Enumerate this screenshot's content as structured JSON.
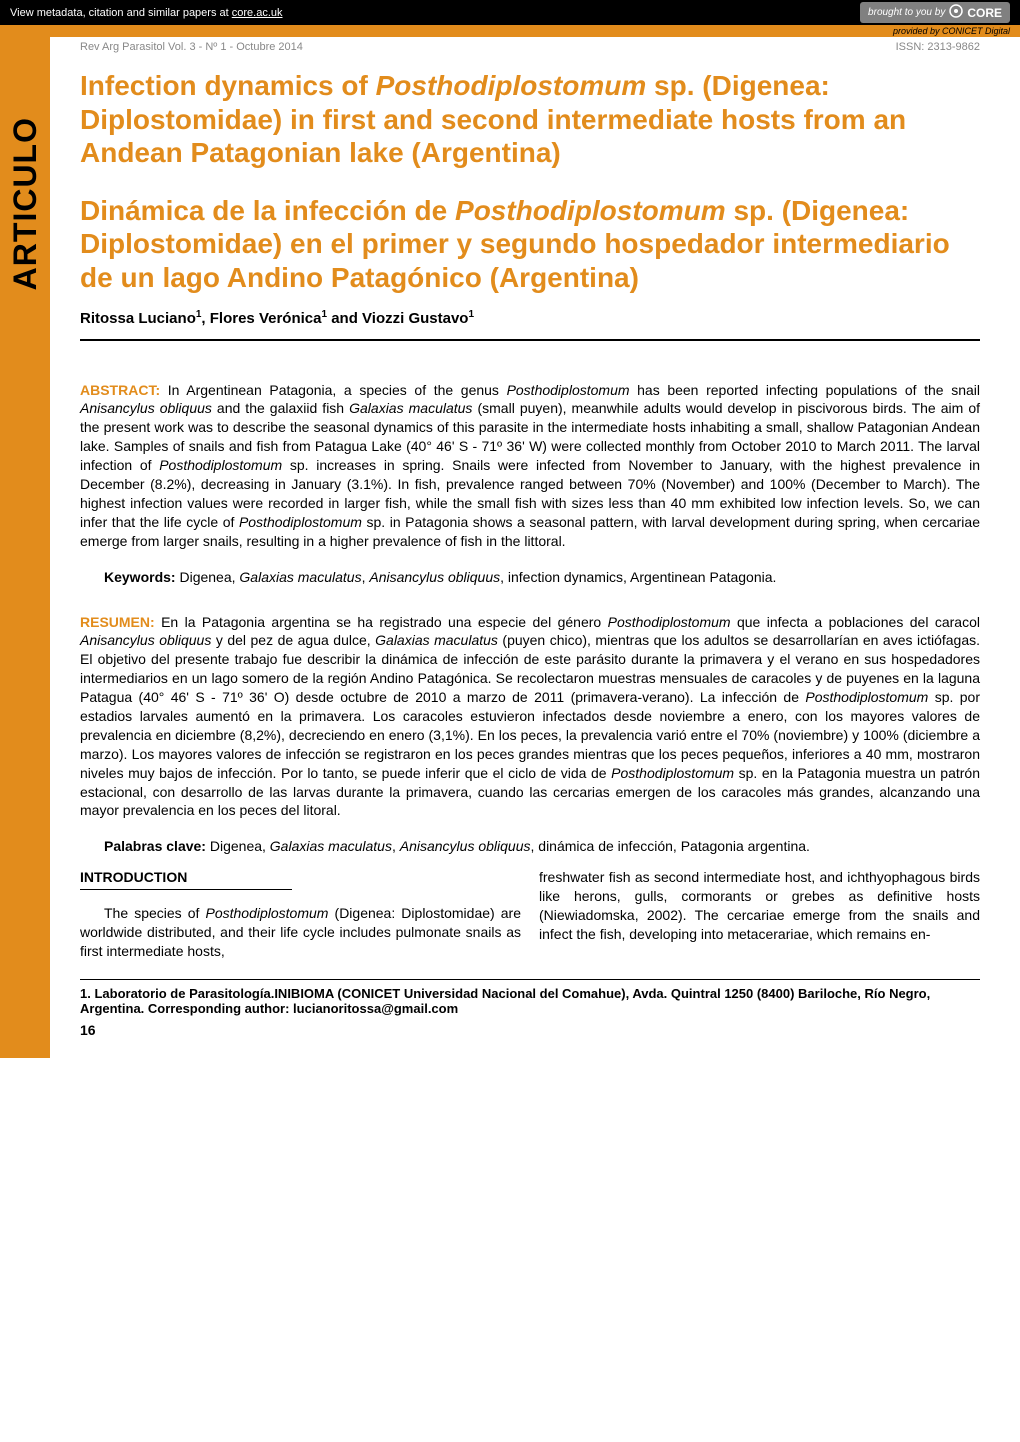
{
  "banner": {
    "metadata_text": "View metadata, citation and similar papers at ",
    "metadata_link": "core.ac.uk",
    "brought_by": "brought to you by",
    "core": "CORE",
    "provided_by": "provided by CONICET Digital"
  },
  "header": {
    "journal_left": "Rev Arg Parasitol Vol. 3 - Nº 1 - Octubre 2014",
    "issn_right": "ISSN: 2313-9862"
  },
  "side_tab": "ARTICULO",
  "title_en": "Infection dynamics of <em>Posthodiplostomum</em> sp. (Digenea: Diplostomidae) in first and second intermediate hosts from an Andean Patagonian lake (Argentina)",
  "title_es": "Dinámica de la infección de <em>Posthodiplostomum</em> sp. (Digenea: Diplostomidae) en el primer y segundo hospedador intermediario de un lago Andino Patagónico (Argentina)",
  "authors_html": "Ritossa Luciano<sup>1</sup>, Flores Verónica<sup>1</sup> and Viozzi Gustavo<sup>1</sup>",
  "abstract": {
    "label": "ABSTRACT:",
    "text": " In Argentinean Patagonia, a species of the genus <em>Posthodiplostomum</em> has been reported infecting populations of the snail <em>Anisancylus obliquus</em> and the galaxiid fish <em>Galaxias maculatus</em> (small puyen), meanwhile adults would develop in piscivorous birds. The aim of the present work was to describe the seasonal dynamics of this parasite in the intermediate hosts inhabiting a small, shallow Patagonian Andean lake. Samples of snails and fish from Patagua Lake (40° 46' S - 71º 36' W) were collected monthly from October 2010 to March 2011. The larval infection of <em>Posthodiplostomum</em> sp. increases in spring. Snails were infected from November to January, with the highest prevalence in December (8.2%), decreasing in January (3.1%). In fish, prevalence ranged between 70% (November) and 100% (December to March). The highest infection values were recorded in larger fish, while the small fish with sizes less than 40 mm exhibited low infection levels.  So, we can infer that the life cycle of <em>Posthodiplostomum</em> sp. in Patagonia shows a seasonal pattern, with larval development during spring, when cercariae emerge from larger snails, resulting in a higher prevalence of fish in the littoral."
  },
  "keywords": {
    "label": "Keywords:",
    "text": " Digenea, <em>Galaxias maculatus</em>, <em>Anisancylus obliquus</em>, infection dynamics, Argentinean Patagonia."
  },
  "resumen": {
    "label": "RESUMEN:",
    "text": " En la Patagonia argentina se ha registrado una especie del género <em>Posthodiplostomum</em> que infecta a poblaciones del caracol <em>Anisancylus obliquus</em> y del pez de agua dulce, <em>Galaxias maculatus</em> (puyen chico), mientras que los adultos se desarrollarían en aves ictiófagas. El objetivo del presente trabajo fue describir la dinámica de infección de este parásito durante la primavera y el verano en sus hospedadores intermediarios en un lago somero de la región Andino Patagónica. Se recolectaron muestras mensuales de caracoles y de puyenes en la laguna Patagua (40° 46' S - 71º 36' O) desde octubre de 2010 a marzo de 2011 (primavera-verano). La infección de <em>Posthodiplostomum</em> sp. por estadios larvales aumentó en la primavera. Los caracoles estuvieron infectados desde noviembre a enero, con los mayores valores de prevalencia en diciembre (8,2%), decreciendo en enero (3,1%). En los peces, la prevalencia varió entre el 70% (noviembre) y 100% (diciembre a marzo). Los mayores valores de infección se registraron en los peces grandes mientras que los peces pequeños, inferiores a 40 mm, mostraron niveles muy bajos de infección. Por lo tanto, se puede inferir que el ciclo de vida de <em>Posthodiplostomum</em> sp. en la Patagonia muestra un patrón estacional, con desarrollo de las larvas durante la primavera, cuando las cercarias emergen de los caracoles más grandes, alcanzando una mayor prevalencia en los peces del litoral."
  },
  "palabras": {
    "label": "Palabras clave:",
    "text": " Digenea, <em>Galaxias maculatus</em>,  <em>Anisancylus obliquus</em>, dinámica de infección, Patagonia argentina."
  },
  "intro": {
    "heading": "INTRODUCTION",
    "col1": "The species of <em>Posthodiplostomum</em> (Digenea: Diplostomidae) are worldwide distributed, and their life cycle includes pulmonate snails as first intermediate hosts,",
    "col2": "freshwater fish as second intermediate host, and ichthyophagous birds like herons, gulls, cormorants or grebes as definitive hosts (Niewiadomska, 2002). The cercariae emerge from the snails and infect the fish, developing into metacerariae, which remains en-"
  },
  "affiliation": "1. Laboratorio de Parasitología.INIBIOMA (CONICET Universidad Nacional del Comahue), Avda. Quintral 1250 (8400) Bariloche, Río Negro, Argentina. Corresponding author: lucianoritossa@gmail.com",
  "page_number": "16",
  "colors": {
    "orange": "#e28c1c",
    "black": "#000000",
    "gray": "#808080"
  }
}
